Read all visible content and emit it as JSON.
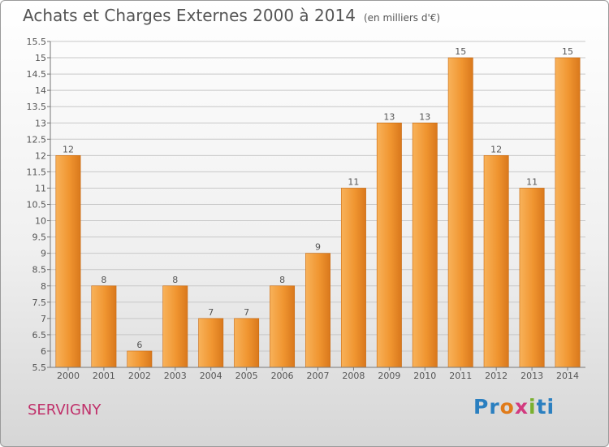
{
  "header": {
    "title": "Achats et Charges Externes 2000 à 2014",
    "unit": "(en milliers d'€)"
  },
  "footer": {
    "place": "SERVIGNY",
    "brand": [
      "Pr",
      "o",
      "x",
      "i",
      "ti"
    ]
  },
  "colors": {
    "bar": "#f09530",
    "bar_light": "#f8b25a",
    "bar_dark": "#d9781c",
    "grid": "#c8c8c8",
    "title": "#555555",
    "place": "#c0306a"
  },
  "chart_data": {
    "type": "bar",
    "title": "Achats et Charges Externes 2000 à 2014",
    "subtitle": "(en milliers d'€)",
    "xlabel": "",
    "ylabel": "",
    "categories": [
      "2000",
      "2001",
      "2002",
      "2003",
      "2004",
      "2005",
      "2006",
      "2007",
      "2008",
      "2009",
      "2010",
      "2011",
      "2012",
      "2013",
      "2014"
    ],
    "values": [
      12,
      8,
      6,
      8,
      7,
      7,
      8,
      9,
      11,
      13,
      13,
      15,
      12,
      11,
      15
    ],
    "ylim": [
      5.5,
      15.5
    ],
    "yticks": [
      5.5,
      6,
      6.5,
      7,
      7.5,
      8,
      8.5,
      9,
      9.5,
      10,
      10.5,
      11,
      11.5,
      12,
      12.5,
      13,
      13.5,
      14,
      14.5,
      15,
      15.5
    ],
    "grid": true,
    "legend": "none"
  }
}
